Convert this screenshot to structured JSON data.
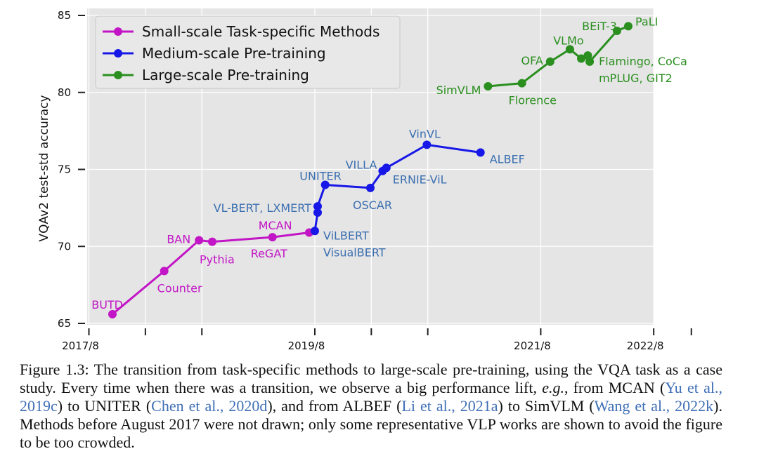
{
  "chart_data": {
    "type": "line",
    "ylabel": "VQAv2 test-std accuracy",
    "ylim": [
      65,
      85
    ],
    "yticks": [
      65,
      70,
      75,
      80,
      85
    ],
    "xticks": [
      {
        "label": "2017/8",
        "x": 0
      },
      {
        "label": "",
        "x": 6
      },
      {
        "label": "",
        "x": 12
      },
      {
        "label": "2019/8",
        "x": 24
      },
      {
        "label": "",
        "x": 30
      },
      {
        "label": "",
        "x": 36
      },
      {
        "label": "2021/8",
        "x": 48
      },
      {
        "label": "2022/8",
        "x": 60
      },
      {
        "label": "",
        "x": 64
      }
    ],
    "grid": true,
    "legend_position": "top-left",
    "series": [
      {
        "name": "Small-scale Task-specific Methods",
        "color": "#c215c6",
        "points": [
          {
            "x": 2.5,
            "y": 65.6
          },
          {
            "x": 8,
            "y": 68.4
          },
          {
            "x": 11.7,
            "y": 70.4
          },
          {
            "x": 13.1,
            "y": 70.3
          },
          {
            "x": 19.5,
            "y": 70.6
          },
          {
            "x": 23.4,
            "y": 70.9
          }
        ]
      },
      {
        "name": "Medium-scale Pre-training",
        "color": "#1717e8",
        "points": [
          {
            "x": 24,
            "y": 71.0
          },
          {
            "x": 24.3,
            "y": 72.2
          },
          {
            "x": 24.3,
            "y": 72.6
          },
          {
            "x": 25.1,
            "y": 74.0
          },
          {
            "x": 29.9,
            "y": 73.8
          },
          {
            "x": 31.2,
            "y": 74.9
          },
          {
            "x": 31.6,
            "y": 75.1
          },
          {
            "x": 35.9,
            "y": 76.6
          },
          {
            "x": 41.6,
            "y": 76.1
          }
        ]
      },
      {
        "name": "Large-scale Pre-training",
        "color": "#2a8f1f",
        "points": [
          {
            "x": 42.4,
            "y": 80.4
          },
          {
            "x": 46,
            "y": 80.6
          },
          {
            "x": 49,
            "y": 82.0
          },
          {
            "x": 51.1,
            "y": 82.8
          },
          {
            "x": 52.3,
            "y": 82.2
          },
          {
            "x": 53,
            "y": 82.4
          },
          {
            "x": 53.2,
            "y": 82.0
          },
          {
            "x": 56.1,
            "y": 84.0
          },
          {
            "x": 57.3,
            "y": 84.3
          }
        ]
      }
    ],
    "annotations": [
      {
        "text": "BUTD",
        "series": 0,
        "color": "#c215c6",
        "x": 2.5,
        "y": 65.6,
        "anchor": "end",
        "dx": 15,
        "dy": -13
      },
      {
        "text": "Counter",
        "series": 0,
        "color": "#c215c6",
        "x": 8,
        "y": 68.4,
        "anchor": "start",
        "dx": -10,
        "dy": 25
      },
      {
        "text": "BAN",
        "series": 0,
        "color": "#c215c6",
        "x": 11.7,
        "y": 70.4,
        "anchor": "end",
        "dx": -12,
        "dy": -1
      },
      {
        "text": "Pythia",
        "series": 0,
        "color": "#c215c6",
        "x": 13.1,
        "y": 70.3,
        "anchor": "start",
        "dx": -18,
        "dy": 26
      },
      {
        "text": "MCAN",
        "series": 0,
        "color": "#c215c6",
        "x": 19.5,
        "y": 70.6,
        "anchor": "start",
        "dx": -20,
        "dy": -16
      },
      {
        "text": "ReGAT",
        "series": 0,
        "color": "#c215c6",
        "x": 19.5,
        "y": 70.6,
        "anchor": "start",
        "dx": -31,
        "dy": 24
      },
      {
        "text": "VL-BERT, LXMERT",
        "series": 1,
        "color": "#3b6fb0",
        "x": 24.3,
        "y": 72.6,
        "anchor": "end",
        "dx": -9,
        "dy": 3
      },
      {
        "text": "UNITER",
        "series": 1,
        "color": "#3b6fb0",
        "x": 25.1,
        "y": 74.0,
        "anchor": "end",
        "dx": 23,
        "dy": -12
      },
      {
        "text": "ViLBERT",
        "series": 1,
        "color": "#3b6fb0",
        "x": 24,
        "y": 71.0,
        "anchor": "start",
        "dx": 12,
        "dy": 7
      },
      {
        "text": "VisualBERT",
        "series": 1,
        "color": "#3b6fb0",
        "x": 24,
        "y": 71.0,
        "anchor": "start",
        "dx": 12,
        "dy": 31
      },
      {
        "text": "OSCAR",
        "series": 1,
        "color": "#3b6fb0",
        "x": 29.9,
        "y": 73.8,
        "anchor": "middle",
        "dx": 3,
        "dy": 25
      },
      {
        "text": "VILLA",
        "series": 1,
        "color": "#3b6fb0",
        "x": 31.2,
        "y": 74.9,
        "anchor": "end",
        "dx": -8,
        "dy": -8
      },
      {
        "text": "ERNIE-ViL",
        "series": 1,
        "color": "#3b6fb0",
        "x": 31.6,
        "y": 75.1,
        "anchor": "start",
        "dx": 9,
        "dy": 17
      },
      {
        "text": "VinVL",
        "series": 1,
        "color": "#3b6fb0",
        "x": 35.9,
        "y": 76.6,
        "anchor": "middle",
        "dx": -3,
        "dy": -15
      },
      {
        "text": "ALBEF",
        "series": 1,
        "color": "#3b6fb0",
        "x": 41.6,
        "y": 76.1,
        "anchor": "start",
        "dx": 13,
        "dy": 10
      },
      {
        "text": "SimVLM",
        "series": 2,
        "color": "#2a8f1f",
        "x": 42.4,
        "y": 80.4,
        "anchor": "end",
        "dx": -10,
        "dy": 6
      },
      {
        "text": "Florence",
        "series": 2,
        "color": "#2a8f1f",
        "x": 46,
        "y": 80.6,
        "anchor": "start",
        "dx": -19,
        "dy": 25
      },
      {
        "text": "OFA",
        "series": 2,
        "color": "#2a8f1f",
        "x": 49,
        "y": 82.0,
        "anchor": "end",
        "dx": -10,
        "dy": -1
      },
      {
        "text": "VLMo",
        "series": 2,
        "color": "#2a8f1f",
        "x": 51.1,
        "y": 82.8,
        "anchor": "middle",
        "dx": -2,
        "dy": -12
      },
      {
        "text": "Flamingo, CoCa",
        "series": 2,
        "color": "#2a8f1f",
        "x": 53.2,
        "y": 82.0,
        "anchor": "start",
        "dx": 13,
        "dy": 0
      },
      {
        "text": "mPLUG, GIT2",
        "series": 2,
        "color": "#2a8f1f",
        "x": 53.2,
        "y": 82.0,
        "anchor": "start",
        "dx": 13,
        "dy": 24
      },
      {
        "text": "BEiT-3",
        "series": 2,
        "color": "#2a8f1f",
        "x": 56.1,
        "y": 84.0,
        "anchor": "end",
        "dx": 0,
        "dy": -6
      },
      {
        "text": "PaLI",
        "series": 2,
        "color": "#2a8f1f",
        "x": 57.3,
        "y": 84.3,
        "anchor": "start",
        "dx": 10,
        "dy": -6
      }
    ]
  },
  "caption": {
    "label": "Figure 1.3:",
    "part1": " The transition from task-specific methods to large-scale pre-training, using the VQA task as a case study. Every time when there was a transition, we observe a big performance lift, ",
    "eg": "e.g.",
    "part2": ", from MCAN (",
    "ref1": "Yu et al., 2019c",
    "part3": ") to UNITER (",
    "ref2": "Chen et al., 2020d",
    "part4": "), and from ALBEF (",
    "ref3": "Li et al., 2021a",
    "part5": ") to SimVLM (",
    "ref4": "Wang et al., 2022k",
    "part6": "). Methods before August 2017 were not drawn; only some representative VLP works are shown to avoid the figure to be too crowded."
  }
}
